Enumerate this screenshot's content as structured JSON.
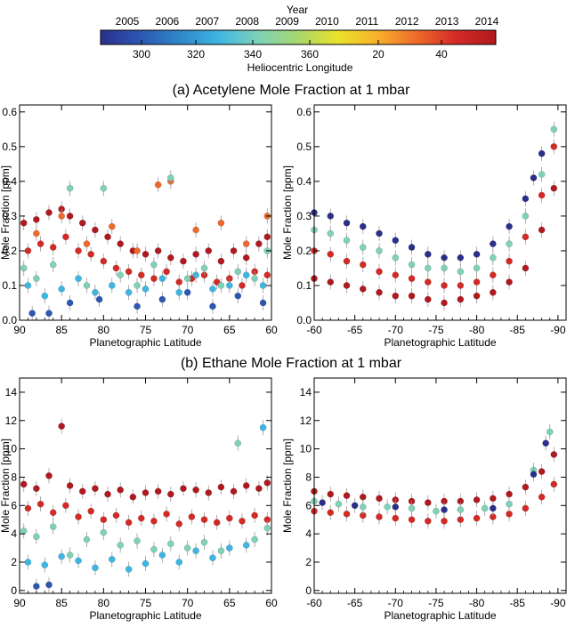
{
  "colorbar": {
    "title": "Year",
    "year_ticks": [
      "2005",
      "2006",
      "2007",
      "2008",
      "2009",
      "2010",
      "2011",
      "2012",
      "2013",
      "2014"
    ],
    "longitude_label": "Heliocentric Longitude",
    "longitude_ticks": [
      "300",
      "320",
      "340",
      "360",
      "20",
      "40"
    ],
    "colors": [
      "#2b2f8c",
      "#2c58b2",
      "#2f86c9",
      "#3fb6e2",
      "#7fd2b7",
      "#a7d76e",
      "#e9e22a",
      "#f7b12a",
      "#ee6a2a",
      "#d42a26",
      "#b0191f"
    ]
  },
  "sections": [
    {
      "title": "(a) Acetylene Mole Fraction at 1 mbar"
    },
    {
      "title": "(b) Ethane Mole Fraction at 1 mbar"
    }
  ],
  "chart_data": [
    {
      "type": "scatter",
      "title": "",
      "xlabel": "Planetographic Latitude",
      "ylabel": "Mole Fraction [ppm]",
      "xlim": [
        90,
        60
      ],
      "ylim": [
        0,
        0.62
      ],
      "xticks": [
        "90",
        "85",
        "80",
        "75",
        "70",
        "65",
        "60"
      ],
      "yticks": [
        "0.0",
        "0.1",
        "0.2",
        "0.3",
        "0.4",
        "0.5",
        "0.6"
      ],
      "series": [
        {
          "color": "#b0191f",
          "x": [
            89.5,
            88,
            86.5,
            85,
            84,
            82.5,
            81,
            79.5,
            78,
            76.5,
            75,
            73.5,
            72,
            70.5,
            69,
            67.5,
            66,
            64.5,
            63,
            61.5,
            60.5
          ],
          "y": [
            0.28,
            0.29,
            0.31,
            0.32,
            0.3,
            0.28,
            0.26,
            0.24,
            0.22,
            0.2,
            0.19,
            0.2,
            0.18,
            0.17,
            0.19,
            0.2,
            0.17,
            0.2,
            0.18,
            0.22,
            0.24
          ]
        },
        {
          "color": "#d42a26",
          "x": [
            89,
            87.5,
            86,
            84.5,
            83,
            81.5,
            80,
            78.5,
            77,
            75.5,
            74,
            72.5,
            71,
            69.5,
            68,
            66.5,
            65,
            63.5,
            62,
            60.5
          ],
          "y": [
            0.2,
            0.22,
            0.21,
            0.24,
            0.2,
            0.19,
            0.17,
            0.15,
            0.14,
            0.13,
            0.12,
            0.14,
            0.11,
            0.12,
            0.13,
            0.11,
            0.12,
            0.1,
            0.14,
            0.13
          ]
        },
        {
          "color": "#ee6a2a",
          "x": [
            88,
            85,
            82,
            79,
            76,
            73.5,
            72,
            69,
            66,
            63,
            60.5
          ],
          "y": [
            0.25,
            0.3,
            0.22,
            0.27,
            0.2,
            0.39,
            0.4,
            0.26,
            0.28,
            0.22,
            0.3
          ]
        },
        {
          "color": "#7fd2b7",
          "x": [
            89.5,
            88,
            86,
            84,
            82,
            80,
            78,
            76,
            74,
            72,
            70,
            68,
            66,
            64,
            62,
            60.5
          ],
          "y": [
            0.15,
            0.12,
            0.16,
            0.38,
            0.1,
            0.38,
            0.13,
            0.1,
            0.16,
            0.41,
            0.12,
            0.15,
            0.1,
            0.14,
            0.12,
            0.2
          ]
        },
        {
          "color": "#3fb6e2",
          "x": [
            89,
            87,
            85,
            83,
            81,
            79,
            77,
            75,
            73,
            71,
            69,
            67,
            65,
            63,
            61
          ],
          "y": [
            0.1,
            0.07,
            0.09,
            0.12,
            0.08,
            0.1,
            0.08,
            0.09,
            0.12,
            0.08,
            0.13,
            0.09,
            0.1,
            0.13,
            0.1
          ]
        },
        {
          "color": "#2c58b2",
          "x": [
            88.5,
            86.5,
            84,
            80.5,
            76,
            73,
            70,
            67,
            64,
            61
          ],
          "y": [
            0.02,
            0.02,
            0.05,
            0.06,
            0.04,
            0.06,
            0.08,
            0.04,
            0.07,
            0.05
          ]
        }
      ]
    },
    {
      "type": "scatter",
      "title": "",
      "xlabel": "Planetographic Latitude",
      "ylabel": "Mole Fraction [ppm]",
      "xlim": [
        -60,
        -91
      ],
      "ylim": [
        0,
        0.62
      ],
      "xticks": [
        "-60",
        "-65",
        "-70",
        "-75",
        "-80",
        "-85",
        "-90"
      ],
      "yticks": [
        "0.0",
        "0.1",
        "0.2",
        "0.3",
        "0.4",
        "0.5",
        "0.6"
      ],
      "series": [
        {
          "color": "#2b2f8c",
          "x": [
            -60,
            -62,
            -64,
            -66,
            -68,
            -70,
            -72,
            -74,
            -76,
            -78,
            -80,
            -82,
            -84,
            -86,
            -87,
            -88
          ],
          "y": [
            0.31,
            0.3,
            0.28,
            0.27,
            0.25,
            0.23,
            0.21,
            0.19,
            0.18,
            0.18,
            0.19,
            0.22,
            0.27,
            0.35,
            0.41,
            0.48
          ]
        },
        {
          "color": "#7fd2b7",
          "x": [
            -60,
            -62,
            -64,
            -66,
            -68,
            -70,
            -72,
            -74,
            -76,
            -78,
            -80,
            -82,
            -84,
            -86,
            -88,
            -89.5
          ],
          "y": [
            0.26,
            0.25,
            0.23,
            0.21,
            0.2,
            0.18,
            0.16,
            0.15,
            0.15,
            0.14,
            0.15,
            0.18,
            0.22,
            0.3,
            0.42,
            0.55
          ]
        },
        {
          "color": "#d42a26",
          "x": [
            -60,
            -62,
            -64,
            -66,
            -68,
            -70,
            -72,
            -74,
            -76,
            -78,
            -80,
            -82,
            -84,
            -86,
            -88,
            -89.5
          ],
          "y": [
            0.2,
            0.19,
            0.17,
            0.16,
            0.14,
            0.13,
            0.12,
            0.11,
            0.1,
            0.1,
            0.11,
            0.13,
            0.17,
            0.24,
            0.36,
            0.5
          ]
        },
        {
          "color": "#b0191f",
          "x": [
            -60,
            -62,
            -64,
            -66,
            -68,
            -70,
            -72,
            -74,
            -76,
            -78,
            -80,
            -82,
            -84,
            -86,
            -88,
            -89.5
          ],
          "y": [
            0.12,
            0.11,
            0.1,
            0.09,
            0.08,
            0.07,
            0.07,
            0.06,
            0.05,
            0.06,
            0.07,
            0.08,
            0.11,
            0.15,
            0.26,
            0.38
          ]
        }
      ]
    },
    {
      "type": "scatter",
      "title": "",
      "xlabel": "Planetographic Latitude",
      "ylabel": "Mole Fraction [ppm]",
      "xlim": [
        90,
        60
      ],
      "ylim": [
        -0.2,
        15
      ],
      "xticks": [
        "90",
        "85",
        "80",
        "75",
        "70",
        "65",
        "60"
      ],
      "yticks": [
        "0",
        "2",
        "4",
        "6",
        "8",
        "10",
        "12",
        "14"
      ],
      "series": [
        {
          "color": "#b0191f",
          "x": [
            89.5,
            88,
            86.5,
            85,
            84,
            82.5,
            81,
            79.5,
            78,
            76.5,
            75,
            73.5,
            72,
            70.5,
            69,
            67.5,
            66,
            64.5,
            63,
            61.5,
            60.5
          ],
          "y": [
            7.5,
            7.2,
            8.1,
            11.6,
            7.4,
            7.0,
            7.2,
            6.8,
            7.1,
            6.6,
            6.9,
            7.0,
            6.8,
            7.2,
            7.1,
            6.9,
            7.3,
            7.0,
            7.4,
            7.2,
            7.6
          ]
        },
        {
          "color": "#d42a26",
          "x": [
            89,
            87.5,
            86,
            84.5,
            83,
            81.5,
            80,
            78.5,
            77,
            75.5,
            74,
            72.5,
            71,
            69.5,
            68,
            66.5,
            65,
            63.5,
            62,
            60.5
          ],
          "y": [
            5.8,
            6.1,
            5.5,
            6.0,
            5.2,
            5.6,
            5.0,
            5.3,
            4.8,
            5.1,
            4.9,
            5.4,
            4.7,
            5.2,
            5.0,
            4.8,
            5.1,
            4.9,
            5.3,
            5.0
          ]
        },
        {
          "color": "#7fd2b7",
          "x": [
            89.5,
            88,
            86,
            84,
            82,
            80,
            78,
            76,
            74,
            72,
            70,
            68,
            66,
            64,
            62,
            60.5
          ],
          "y": [
            4.2,
            3.8,
            4.5,
            2.5,
            3.6,
            4.1,
            3.2,
            3.5,
            2.9,
            3.3,
            3.0,
            3.4,
            2.8,
            10.4,
            3.6,
            4.4
          ]
        },
        {
          "color": "#3fb6e2",
          "x": [
            89,
            87,
            85,
            83,
            81,
            79,
            77,
            75,
            73,
            71,
            69,
            67,
            65,
            63,
            61
          ],
          "y": [
            2.0,
            1.8,
            2.4,
            2.1,
            1.6,
            2.2,
            1.5,
            1.9,
            2.5,
            2.0,
            2.8,
            2.3,
            3.0,
            3.2,
            11.5
          ]
        },
        {
          "color": "#2c58b2",
          "x": [
            88,
            86.5
          ],
          "y": [
            0.3,
            0.4
          ]
        }
      ]
    },
    {
      "type": "scatter",
      "title": "",
      "xlabel": "Planetographic Latitude",
      "ylabel": "Mole Fraction [ppm]",
      "xlim": [
        -60,
        -91
      ],
      "ylim": [
        -0.2,
        15
      ],
      "xticks": [
        "-60",
        "-65",
        "-70",
        "-75",
        "-80",
        "-85",
        "-90"
      ],
      "yticks": [
        "0",
        "2",
        "4",
        "6",
        "8",
        "10",
        "12",
        "14"
      ],
      "series": [
        {
          "color": "#b0191f",
          "x": [
            -60,
            -62,
            -64,
            -66,
            -68,
            -70,
            -72,
            -74,
            -76,
            -78,
            -80,
            -82,
            -84,
            -86,
            -88,
            -89.5
          ],
          "y": [
            7.0,
            6.8,
            6.7,
            6.6,
            6.5,
            6.4,
            6.3,
            6.2,
            6.3,
            6.3,
            6.4,
            6.5,
            6.8,
            7.3,
            8.4,
            9.6
          ]
        },
        {
          "color": "#d42a26",
          "x": [
            -60,
            -62,
            -64,
            -66,
            -68,
            -70,
            -72,
            -74,
            -76,
            -78,
            -80,
            -82,
            -84,
            -86,
            -88,
            -89.5
          ],
          "y": [
            5.6,
            5.5,
            5.4,
            5.3,
            5.2,
            5.1,
            5.0,
            4.9,
            4.9,
            5.0,
            5.1,
            5.2,
            5.4,
            5.8,
            6.6,
            7.5
          ]
        },
        {
          "color": "#7fd2b7",
          "x": [
            -60,
            -63,
            -66,
            -69,
            -72,
            -75,
            -78,
            -81,
            -84,
            -87,
            -89
          ],
          "y": [
            6.3,
            6.1,
            5.9,
            5.9,
            5.8,
            5.6,
            5.7,
            5.8,
            6.1,
            8.5,
            11.2
          ]
        },
        {
          "color": "#2b2f8c",
          "x": [
            -61,
            -65,
            -70,
            -76,
            -82,
            -87,
            -88.5
          ],
          "y": [
            6.2,
            6.0,
            5.9,
            5.7,
            5.8,
            8.2,
            10.4
          ]
        }
      ]
    }
  ]
}
